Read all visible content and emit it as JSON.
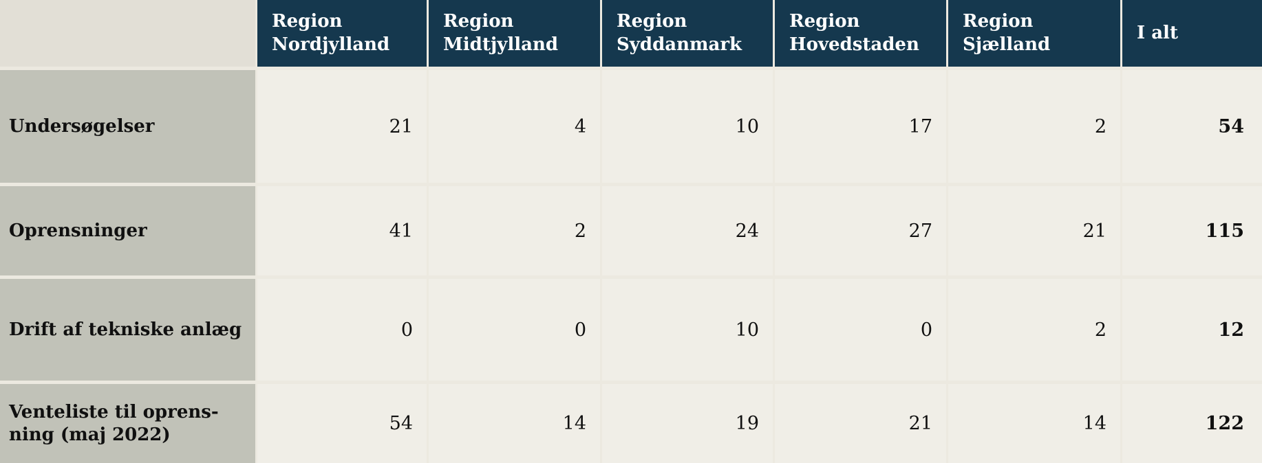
{
  "table": {
    "corner_label": "",
    "columns": [
      {
        "label": "Region\nNordjylland"
      },
      {
        "label": "Region\nMidtjylland"
      },
      {
        "label": "Region\nSyddanmark"
      },
      {
        "label": "Region\nHovedstaden"
      },
      {
        "label": "Region\nSjælland"
      },
      {
        "label": "I alt"
      }
    ],
    "rows": [
      {
        "label": "Undersøgelser",
        "values": [
          "21",
          "4",
          "10",
          "17",
          "2"
        ],
        "total": "54"
      },
      {
        "label": "Oprensninger",
        "values": [
          "41",
          "2",
          "24",
          "27",
          "21"
        ],
        "total": "115"
      },
      {
        "label": "Drift af tekniske anlæg",
        "values": [
          "0",
          "0",
          "10",
          "0",
          "2"
        ],
        "total": "12"
      },
      {
        "label": "Venteliste til oprens-\nning (maj 2022)",
        "values": [
          "54",
          "14",
          "19",
          "21",
          "14"
        ],
        "total": "122"
      }
    ],
    "colors": {
      "header_bg": "#15384e",
      "header_text": "#ffffff",
      "row_label_bg": "#c1c2b8",
      "value_cell_bg": "#f0eee7",
      "corner_bg": "#e2dfd6",
      "grid_gap": "#ece9e0",
      "body_text": "#101010"
    }
  },
  "chart_data": {
    "type": "table",
    "title": "",
    "columns": [
      "Region Nordjylland",
      "Region Midtjylland",
      "Region Syddanmark",
      "Region Hovedstaden",
      "Region Sjælland",
      "I alt"
    ],
    "row_labels": [
      "Undersøgelser",
      "Oprensninger",
      "Drift af tekniske anlæg",
      "Venteliste til oprensning (maj 2022)"
    ],
    "values": [
      [
        21,
        4,
        10,
        17,
        2,
        54
      ],
      [
        41,
        2,
        24,
        27,
        21,
        115
      ],
      [
        0,
        0,
        10,
        0,
        2,
        12
      ],
      [
        54,
        14,
        19,
        21,
        14,
        122
      ]
    ],
    "totals_column_bold": true,
    "grid": "light cream separators between cells"
  }
}
